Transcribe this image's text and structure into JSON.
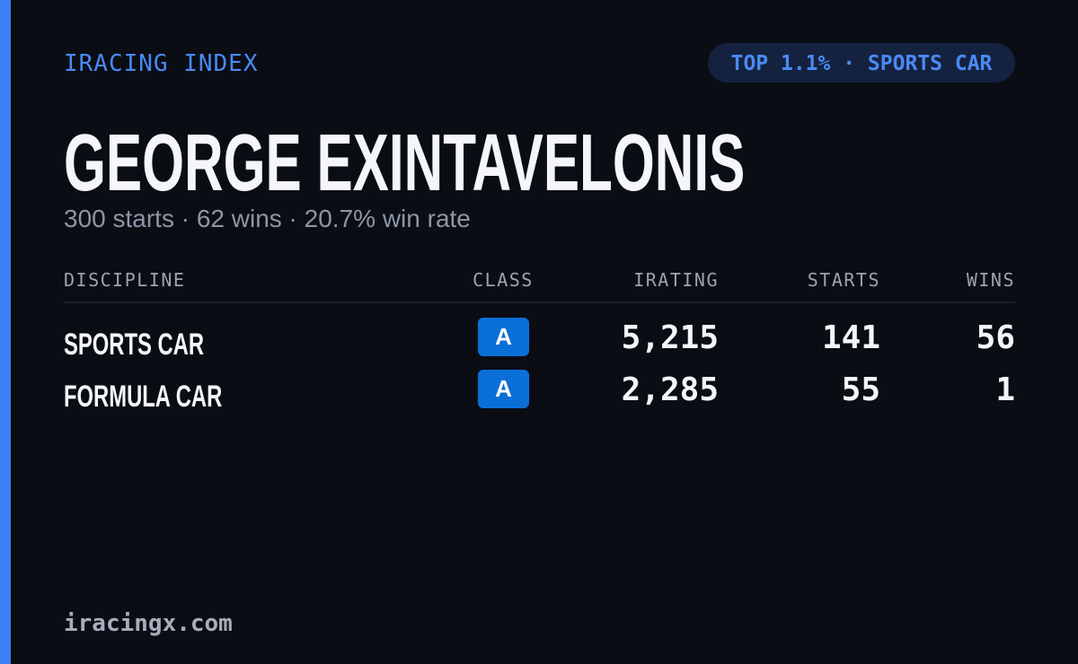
{
  "header": {
    "brand": "IRACING INDEX",
    "badge": "TOP 1.1% · SPORTS CAR"
  },
  "profile": {
    "name": "GEORGE EXINTAVELONIS",
    "summary": "300 starts · 62 wins · 20.7% win rate"
  },
  "table": {
    "columns": [
      "DISCIPLINE",
      "CLASS",
      "IRATING",
      "STARTS",
      "WINS"
    ],
    "rows": [
      [
        "SPORTS CAR",
        "A",
        "5,215",
        "141",
        "56"
      ],
      [
        "FORMULA CAR",
        "A",
        "2,285",
        "55",
        "1"
      ]
    ]
  },
  "footer": {
    "site": "iracingx.com"
  }
}
